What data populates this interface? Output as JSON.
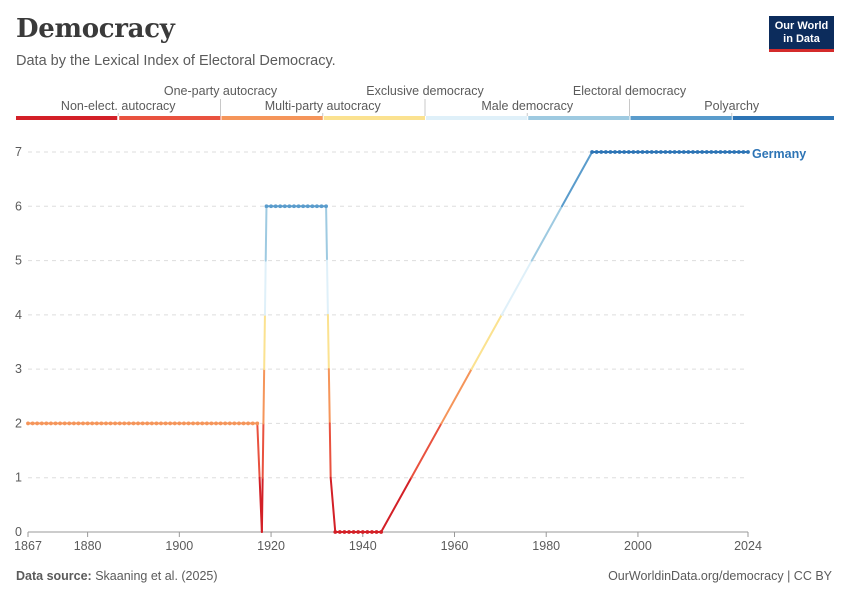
{
  "header": {
    "title": "Democracy",
    "subtitle": "Data by the Lexical Index of Electoral Democracy."
  },
  "logo": {
    "line1": "Our World",
    "line2": "in Data"
  },
  "footer": {
    "source_label": "Data source:",
    "source_text": "Skaaning et al. (2025)",
    "right_text": "OurWorldinData.org/democracy | CC BY"
  },
  "legend": {
    "categories": [
      {
        "label": "Non-elect. autocracy",
        "color": "#d32027"
      },
      {
        "label": "One-party autocracy",
        "color": "#e9523f"
      },
      {
        "label": "Multi-party autocracy",
        "color": "#f5955a"
      },
      {
        "label": "Exclusive democracy",
        "color": "#fbe290"
      },
      {
        "label": "Male democracy",
        "color": "#dff0f9"
      },
      {
        "label": "Electoral democracy",
        "color": "#9ecae1"
      },
      {
        "label": "Polyarchy",
        "color": "#5a9ccc"
      },
      {
        "label": "",
        "color": "#2d74b5"
      }
    ]
  },
  "chart_data": {
    "type": "line",
    "title": "Democracy",
    "subtitle": "Data by the Lexical Index of Electoral Democracy.",
    "xlim": [
      1867,
      2024
    ],
    "ylim": [
      0,
      7
    ],
    "x_ticks": [
      1867,
      1880,
      1900,
      1920,
      1940,
      1960,
      1980,
      2000,
      2024
    ],
    "y_ticks": [
      0,
      1,
      2,
      3,
      4,
      5,
      6,
      7
    ],
    "grid": "horizontal dashed",
    "series": [
      {
        "name": "Germany",
        "points": [
          [
            1867,
            2
          ],
          [
            1917,
            2
          ],
          [
            1918,
            0
          ],
          [
            1919,
            6
          ],
          [
            1932,
            6
          ],
          [
            1933,
            1
          ],
          [
            1934,
            0
          ],
          [
            1944,
            0
          ],
          [
            1990,
            7
          ],
          [
            2024,
            7
          ]
        ],
        "dots": [
          {
            "from": 1867,
            "to": 1917,
            "value": 2
          },
          {
            "from": 1919,
            "to": 1932,
            "value": 6
          },
          {
            "from": 1934,
            "to": 1944,
            "value": 0
          },
          {
            "from": 1990,
            "to": 2024,
            "value": 7
          }
        ]
      }
    ]
  }
}
